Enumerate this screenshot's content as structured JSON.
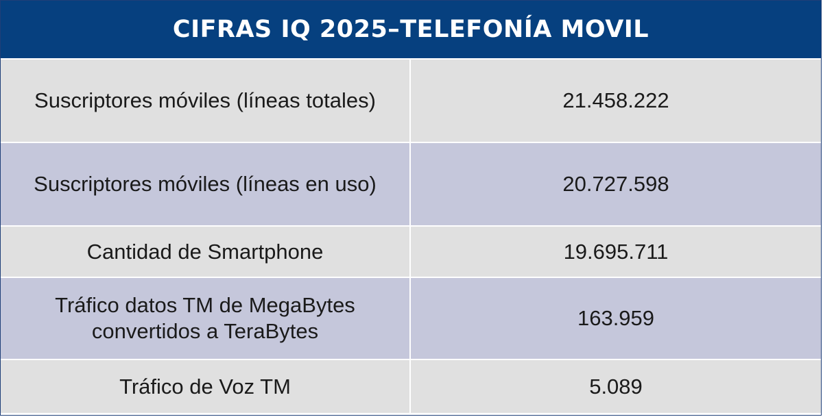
{
  "header": {
    "title": "CIFRAS IQ 2025–TELEFONÍA MOVIL"
  },
  "colors": {
    "header_bg": "#06407f",
    "row_light": "#e0e0e0",
    "row_dark": "#c5c7db"
  },
  "rows": [
    {
      "label": "Suscriptores móviles (líneas totales)",
      "value": "21.458.222"
    },
    {
      "label": "Suscriptores móviles (líneas en uso)",
      "value": "20.727.598"
    },
    {
      "label": "Cantidad de Smartphone",
      "value": "19.695.711"
    },
    {
      "label": "Tráfico datos TM de MegaBytes convertidos a TeraBytes",
      "value": "163.959"
    },
    {
      "label": "Tráfico de Voz TM",
      "value": "5.089"
    }
  ]
}
